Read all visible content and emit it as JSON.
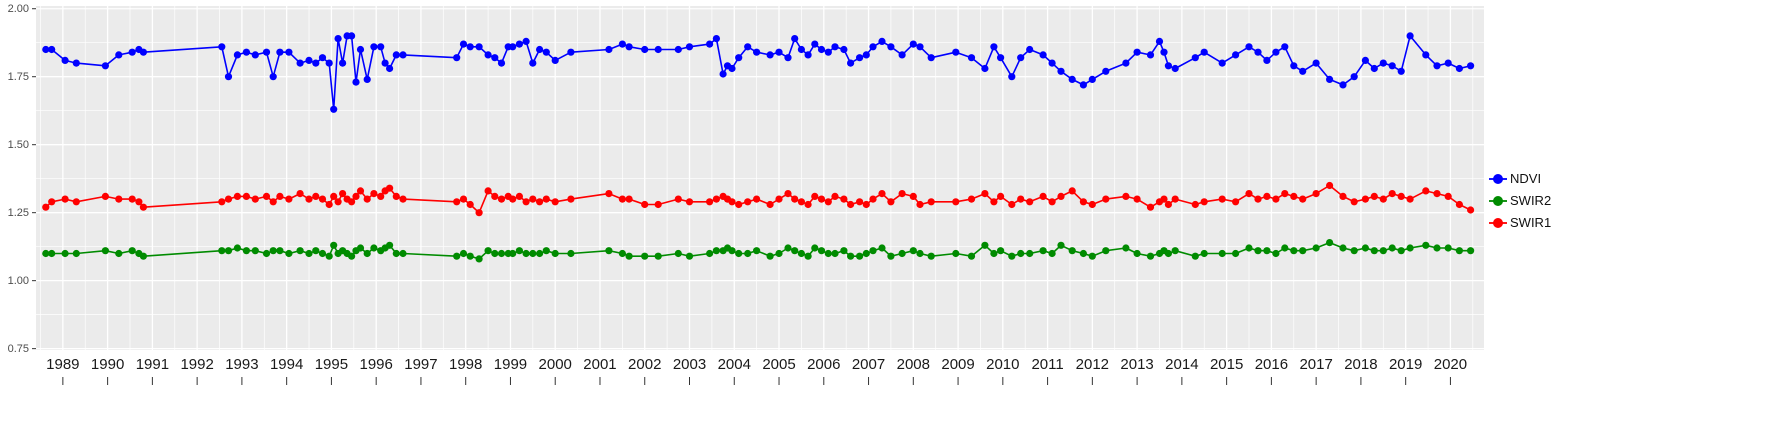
{
  "chart_data": {
    "type": "line",
    "title": "",
    "xlabel": "",
    "ylabel": "",
    "grid": true,
    "legend_position": "right",
    "panel_background": "#EBEBEB",
    "grid_color": "#FFFFFF",
    "axis_text_color_y": "#4D4D4D",
    "axis_text_color_x": "#1A1A1A",
    "xlim": [
      1988.4,
      2020.75
    ],
    "ylim": [
      0.745,
      2.01
    ],
    "x_ticks": [
      1989,
      1990,
      1991,
      1992,
      1993,
      1994,
      1995,
      1996,
      1997,
      1998,
      1999,
      2000,
      2001,
      2002,
      2003,
      2004,
      2005,
      2006,
      2007,
      2008,
      2009,
      2010,
      2011,
      2012,
      2013,
      2014,
      2015,
      2016,
      2017,
      2018,
      2019,
      2020
    ],
    "y_ticks": [
      0.75,
      1.0,
      1.25,
      1.5,
      1.75,
      2.0
    ],
    "y_tick_labels": [
      "0.75",
      "1.00",
      "1.25",
      "1.50",
      "1.75",
      "2.00"
    ],
    "x": [
      1988.62,
      1988.75,
      1989.05,
      1989.3,
      1989.95,
      1990.25,
      1990.55,
      1990.7,
      1990.8,
      1992.55,
      1992.7,
      1992.9,
      1993.1,
      1993.3,
      1993.55,
      1993.7,
      1993.85,
      1994.05,
      1994.3,
      1994.5,
      1994.65,
      1994.8,
      1994.95,
      1995.05,
      1995.15,
      1995.25,
      1995.35,
      1995.45,
      1995.55,
      1995.65,
      1995.8,
      1995.95,
      1996.1,
      1996.2,
      1996.3,
      1996.45,
      1996.6,
      1997.8,
      1997.95,
      1998.1,
      1998.3,
      1998.5,
      1998.65,
      1998.8,
      1998.95,
      1999.05,
      1999.2,
      1999.35,
      1999.5,
      1999.65,
      1999.8,
      2000.0,
      2000.35,
      2001.2,
      2001.5,
      2001.65,
      2002.0,
      2002.3,
      2002.75,
      2003.0,
      2003.45,
      2003.6,
      2003.75,
      2003.85,
      2003.95,
      2004.1,
      2004.3,
      2004.5,
      2004.8,
      2005.0,
      2005.2,
      2005.35,
      2005.5,
      2005.65,
      2005.8,
      2005.95,
      2006.1,
      2006.25,
      2006.45,
      2006.6,
      2006.8,
      2006.95,
      2007.1,
      2007.3,
      2007.5,
      2007.75,
      2008.0,
      2008.15,
      2008.4,
      2008.95,
      2009.3,
      2009.6,
      2009.8,
      2009.95,
      2010.2,
      2010.4,
      2010.6,
      2010.9,
      2011.1,
      2011.3,
      2011.55,
      2011.8,
      2012.0,
      2012.3,
      2012.75,
      2013.0,
      2013.3,
      2013.5,
      2013.6,
      2013.7,
      2013.85,
      2014.3,
      2014.5,
      2014.9,
      2015.2,
      2015.5,
      2015.7,
      2015.9,
      2016.1,
      2016.3,
      2016.5,
      2016.7,
      2017.0,
      2017.3,
      2017.6,
      2017.85,
      2018.1,
      2018.3,
      2018.5,
      2018.7,
      2018.9,
      2019.1,
      2019.45,
      2019.7,
      2019.95,
      2020.2,
      2020.45
    ],
    "series": [
      {
        "name": "NDVI",
        "color": "#0000FF",
        "values": [
          1.85,
          1.85,
          1.81,
          1.8,
          1.79,
          1.83,
          1.84,
          1.85,
          1.84,
          1.86,
          1.75,
          1.83,
          1.84,
          1.83,
          1.84,
          1.75,
          1.84,
          1.84,
          1.8,
          1.81,
          1.8,
          1.82,
          1.8,
          1.63,
          1.89,
          1.8,
          1.9,
          1.9,
          1.73,
          1.85,
          1.74,
          1.86,
          1.86,
          1.8,
          1.78,
          1.83,
          1.83,
          1.82,
          1.87,
          1.86,
          1.86,
          1.83,
          1.82,
          1.8,
          1.86,
          1.86,
          1.87,
          1.88,
          1.8,
          1.85,
          1.84,
          1.81,
          1.84,
          1.85,
          1.87,
          1.86,
          1.85,
          1.85,
          1.85,
          1.86,
          1.87,
          1.89,
          1.76,
          1.79,
          1.78,
          1.82,
          1.86,
          1.84,
          1.83,
          1.84,
          1.82,
          1.89,
          1.85,
          1.83,
          1.87,
          1.85,
          1.84,
          1.86,
          1.85,
          1.8,
          1.82,
          1.83,
          1.86,
          1.88,
          1.86,
          1.83,
          1.87,
          1.86,
          1.82,
          1.84,
          1.82,
          1.78,
          1.86,
          1.82,
          1.75,
          1.82,
          1.85,
          1.83,
          1.8,
          1.77,
          1.74,
          1.72,
          1.74,
          1.77,
          1.8,
          1.84,
          1.83,
          1.88,
          1.84,
          1.79,
          1.78,
          1.82,
          1.84,
          1.8,
          1.83,
          1.86,
          1.84,
          1.81,
          1.84,
          1.86,
          1.79,
          1.77,
          1.8,
          1.74,
          1.72,
          1.75,
          1.81,
          1.78,
          1.8,
          1.79,
          1.77,
          1.9,
          1.83,
          1.79,
          1.8,
          1.78,
          1.79
        ]
      },
      {
        "name": "SWIR2",
        "color": "#008B00",
        "values": [
          1.1,
          1.1,
          1.1,
          1.1,
          1.11,
          1.1,
          1.11,
          1.1,
          1.09,
          1.11,
          1.11,
          1.12,
          1.11,
          1.11,
          1.1,
          1.11,
          1.11,
          1.1,
          1.11,
          1.1,
          1.11,
          1.1,
          1.09,
          1.13,
          1.1,
          1.11,
          1.1,
          1.09,
          1.11,
          1.12,
          1.1,
          1.12,
          1.11,
          1.12,
          1.13,
          1.1,
          1.1,
          1.09,
          1.1,
          1.09,
          1.08,
          1.11,
          1.1,
          1.1,
          1.1,
          1.1,
          1.11,
          1.1,
          1.1,
          1.1,
          1.11,
          1.1,
          1.1,
          1.11,
          1.1,
          1.09,
          1.09,
          1.09,
          1.1,
          1.09,
          1.1,
          1.11,
          1.11,
          1.12,
          1.11,
          1.1,
          1.1,
          1.11,
          1.09,
          1.1,
          1.12,
          1.11,
          1.1,
          1.09,
          1.12,
          1.11,
          1.1,
          1.1,
          1.11,
          1.09,
          1.09,
          1.1,
          1.11,
          1.12,
          1.09,
          1.1,
          1.11,
          1.1,
          1.09,
          1.1,
          1.09,
          1.13,
          1.1,
          1.11,
          1.09,
          1.1,
          1.1,
          1.11,
          1.1,
          1.13,
          1.11,
          1.1,
          1.09,
          1.11,
          1.12,
          1.1,
          1.09,
          1.1,
          1.11,
          1.1,
          1.11,
          1.09,
          1.1,
          1.1,
          1.1,
          1.12,
          1.11,
          1.11,
          1.1,
          1.12,
          1.11,
          1.11,
          1.12,
          1.14,
          1.12,
          1.11,
          1.12,
          1.11,
          1.11,
          1.12,
          1.11,
          1.12,
          1.13,
          1.12,
          1.12,
          1.11,
          1.11
        ]
      },
      {
        "name": "SWIR1",
        "color": "#FF0000",
        "values": [
          1.27,
          1.29,
          1.3,
          1.29,
          1.31,
          1.3,
          1.3,
          1.29,
          1.27,
          1.29,
          1.3,
          1.31,
          1.31,
          1.3,
          1.31,
          1.29,
          1.31,
          1.3,
          1.32,
          1.3,
          1.31,
          1.3,
          1.28,
          1.31,
          1.29,
          1.32,
          1.3,
          1.29,
          1.31,
          1.33,
          1.3,
          1.32,
          1.31,
          1.33,
          1.34,
          1.31,
          1.3,
          1.29,
          1.3,
          1.28,
          1.25,
          1.33,
          1.31,
          1.3,
          1.31,
          1.3,
          1.31,
          1.29,
          1.3,
          1.29,
          1.3,
          1.29,
          1.3,
          1.32,
          1.3,
          1.3,
          1.28,
          1.28,
          1.3,
          1.29,
          1.29,
          1.3,
          1.31,
          1.3,
          1.29,
          1.28,
          1.29,
          1.3,
          1.28,
          1.3,
          1.32,
          1.3,
          1.29,
          1.28,
          1.31,
          1.3,
          1.29,
          1.31,
          1.3,
          1.28,
          1.29,
          1.28,
          1.3,
          1.32,
          1.29,
          1.32,
          1.31,
          1.28,
          1.29,
          1.29,
          1.3,
          1.32,
          1.29,
          1.31,
          1.28,
          1.3,
          1.29,
          1.31,
          1.29,
          1.31,
          1.33,
          1.29,
          1.28,
          1.3,
          1.31,
          1.3,
          1.27,
          1.29,
          1.3,
          1.28,
          1.3,
          1.28,
          1.29,
          1.3,
          1.29,
          1.32,
          1.3,
          1.31,
          1.3,
          1.32,
          1.31,
          1.3,
          1.32,
          1.35,
          1.31,
          1.29,
          1.3,
          1.31,
          1.3,
          1.32,
          1.31,
          1.3,
          1.33,
          1.32,
          1.31,
          1.28,
          1.26
        ]
      }
    ]
  },
  "legend": {
    "items": [
      {
        "label": "NDVI"
      },
      {
        "label": "SWIR2"
      },
      {
        "label": "SWIR1"
      }
    ]
  }
}
